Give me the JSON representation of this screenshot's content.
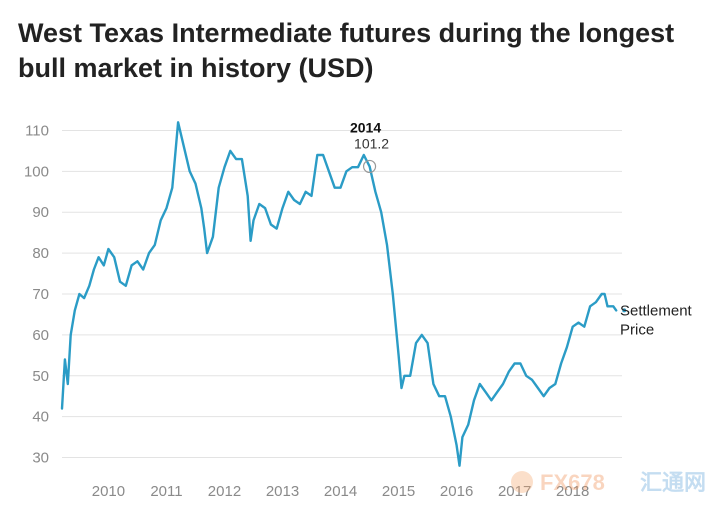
{
  "chart_data": {
    "type": "line",
    "title": "West Texas Intermediate futures during the longest bull market in history (USD)",
    "xlabel": "",
    "ylabel": "",
    "x_ticks": [
      "2010",
      "2011",
      "2012",
      "2013",
      "2014",
      "2015",
      "2016",
      "2017",
      "2018"
    ],
    "y_ticks": [
      30,
      40,
      50,
      60,
      70,
      80,
      90,
      100,
      110
    ],
    "ylim": [
      25,
      115
    ],
    "xlim": [
      2009.2,
      2018.85
    ],
    "grid": true,
    "annotation": {
      "year": "2014",
      "value": "101.2",
      "x": 2014.5,
      "y": 101.2
    },
    "series": [
      {
        "name": "Settlement Price",
        "line1": "Settlement",
        "line2": "Price",
        "color": "#2b9cc6",
        "x": [
          2009.2,
          2009.25,
          2009.3,
          2009.35,
          2009.42,
          2009.5,
          2009.58,
          2009.67,
          2009.75,
          2009.83,
          2009.92,
          2010.0,
          2010.1,
          2010.2,
          2010.3,
          2010.4,
          2010.5,
          2010.6,
          2010.7,
          2010.8,
          2010.9,
          2011.0,
          2011.1,
          2011.15,
          2011.2,
          2011.3,
          2011.4,
          2011.5,
          2011.6,
          2011.65,
          2011.7,
          2011.8,
          2011.9,
          2012.0,
          2012.1,
          2012.2,
          2012.3,
          2012.4,
          2012.45,
          2012.5,
          2012.6,
          2012.7,
          2012.8,
          2012.9,
          2013.0,
          2013.1,
          2013.2,
          2013.3,
          2013.4,
          2013.5,
          2013.6,
          2013.7,
          2013.8,
          2013.9,
          2014.0,
          2014.1,
          2014.2,
          2014.3,
          2014.4,
          2014.5,
          2014.6,
          2014.7,
          2014.8,
          2014.9,
          2015.0,
          2015.05,
          2015.1,
          2015.2,
          2015.3,
          2015.4,
          2015.5,
          2015.6,
          2015.7,
          2015.8,
          2015.9,
          2016.0,
          2016.05,
          2016.1,
          2016.2,
          2016.3,
          2016.4,
          2016.5,
          2016.6,
          2016.7,
          2016.8,
          2016.9,
          2017.0,
          2017.1,
          2017.2,
          2017.3,
          2017.4,
          2017.5,
          2017.6,
          2017.7,
          2017.8,
          2017.9,
          2018.0,
          2018.1,
          2018.2,
          2018.3,
          2018.4,
          2018.5,
          2018.55,
          2018.6,
          2018.7,
          2018.75
        ],
        "values": [
          42,
          54,
          48,
          60,
          66,
          70,
          69,
          72,
          76,
          79,
          77,
          81,
          79,
          73,
          72,
          77,
          78,
          76,
          80,
          82,
          88,
          91,
          96,
          104,
          112,
          106,
          100,
          97,
          91,
          86,
          80,
          84,
          96,
          101,
          105,
          103,
          103,
          94,
          83,
          88,
          92,
          91,
          87,
          86,
          91,
          95,
          93,
          92,
          95,
          94,
          104,
          104,
          100,
          96,
          96,
          100,
          101,
          101,
          104,
          101.2,
          95,
          90,
          82,
          70,
          55,
          47,
          50,
          50,
          58,
          60,
          58,
          48,
          45,
          45,
          40,
          33,
          28,
          35,
          38,
          44,
          48,
          46,
          44,
          46,
          48,
          51,
          53,
          53,
          50,
          49,
          47,
          45,
          47,
          48,
          53,
          57,
          62,
          63,
          62,
          67,
          68,
          70,
          70,
          67,
          67,
          66
        ]
      }
    ]
  },
  "watermark": {
    "left": "FX678",
    "right": "汇通网"
  }
}
